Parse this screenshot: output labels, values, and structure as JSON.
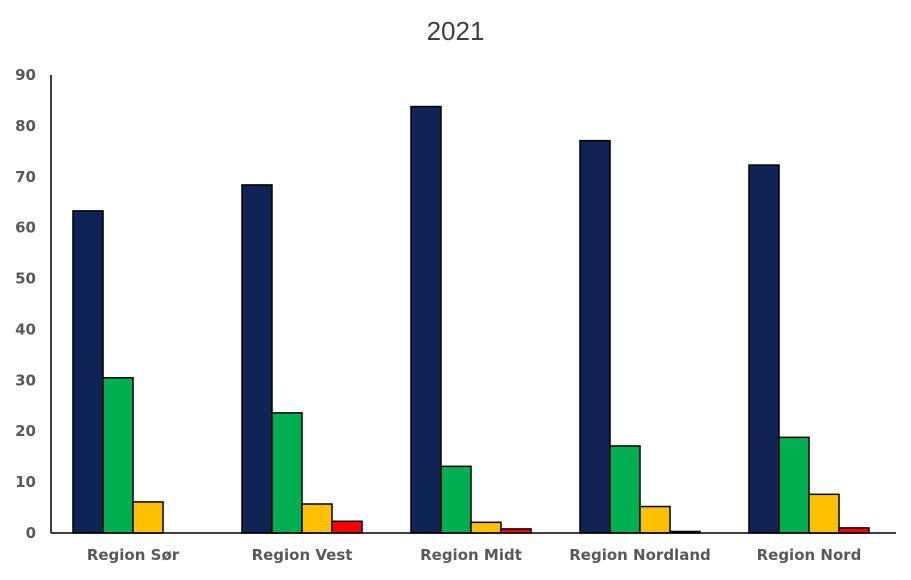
{
  "chart_data": {
    "type": "bar",
    "title": "2021",
    "xlabel": "",
    "ylabel": "",
    "ylim": [
      0,
      90
    ],
    "yticks": [
      0,
      10,
      20,
      30,
      40,
      50,
      60,
      70,
      80,
      90
    ],
    "grid": false,
    "legend": "none",
    "categories": [
      "Region Sør",
      "Region Vest",
      "Region Midt",
      "Region Nordland",
      "Region Nord"
    ],
    "series": [
      {
        "color": "#0f2454",
        "values": [
          63.3,
          68.4,
          83.8,
          77.1,
          72.3
        ]
      },
      {
        "color": "#00b050",
        "values": [
          30.5,
          23.6,
          13.1,
          17.1,
          18.8
        ]
      },
      {
        "color": "#ffc000",
        "values": [
          6.1,
          5.7,
          2.1,
          5.2,
          7.6
        ]
      },
      {
        "color": "#ff0000",
        "values": [
          0,
          2.3,
          0.8,
          0.3,
          1.0
        ]
      }
    ]
  }
}
